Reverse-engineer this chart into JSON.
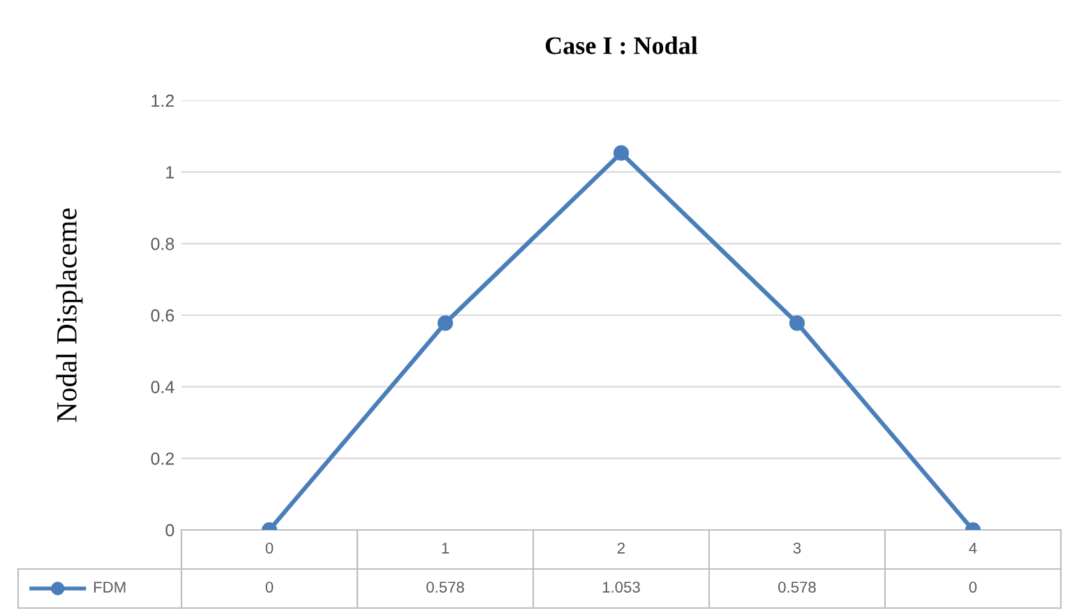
{
  "chart_data": {
    "type": "line",
    "title": "Case I : Nodal",
    "ylabel": "Nodal Displaceme",
    "categories": [
      "0",
      "1",
      "2",
      "3",
      "4"
    ],
    "series": [
      {
        "name": "FDM",
        "color": "#4a7ebb",
        "values": [
          0,
          0.578,
          1.053,
          0.578,
          0
        ]
      }
    ],
    "ylim": [
      0,
      1.2
    ],
    "yticks": [
      0,
      0.2,
      0.4,
      0.6,
      0.8,
      1,
      1.2
    ],
    "grid": "y",
    "legend": "bottom",
    "marker": "circle",
    "line_style": "solid",
    "data_labels": true
  }
}
